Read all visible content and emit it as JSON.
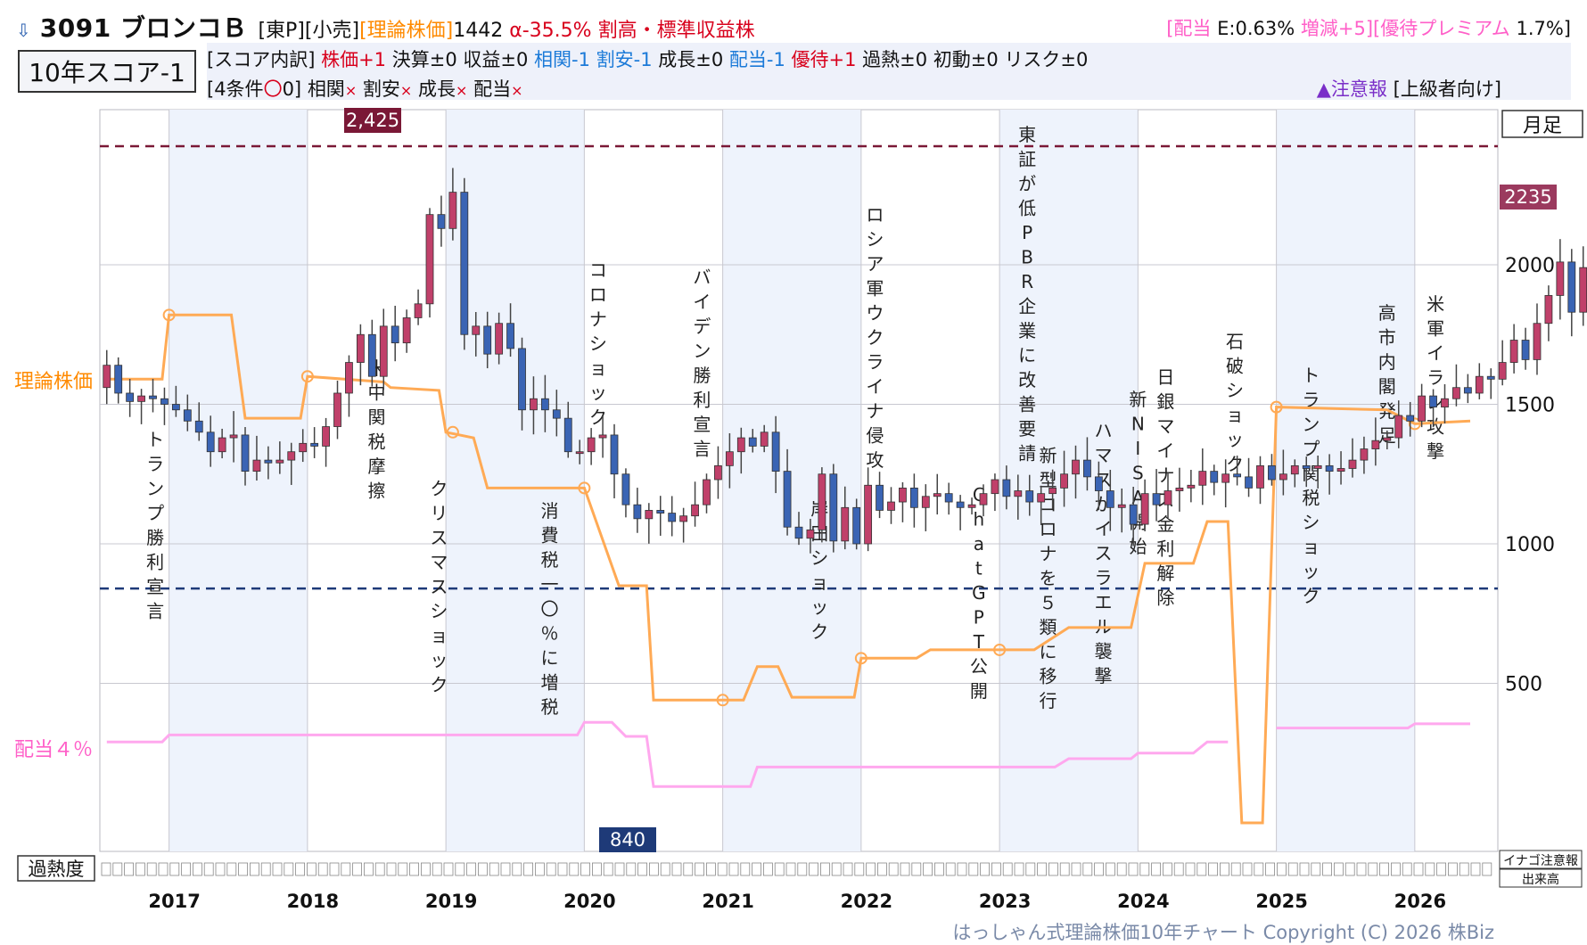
{
  "header": {
    "arrow_icon": "down-arrow-icon",
    "title": "3091 ブロンコＢ",
    "market": "[東P][小売]",
    "theory_label": "[理論株価]",
    "theory_value": "1442",
    "alpha": "α-35.5%",
    "valuation": "割高・標準収益株",
    "right_div_open": "[配当",
    "right_e": "E:0.63%",
    "right_change": "増減+5]",
    "right_yutai": "[優待プレミアム",
    "right_yutai_val": "1.7%]",
    "score_label": "10年スコア-1",
    "breakdown_prefix": "[スコア内訳]",
    "breakdown": [
      {
        "text": "株価+1",
        "color": "#d8001c"
      },
      {
        "text": "決算±0",
        "color": "#111111"
      },
      {
        "text": "収益±0",
        "color": "#111111"
      },
      {
        "text": "相関-1",
        "color": "#1b7ad8"
      },
      {
        "text": "割安-1",
        "color": "#1b7ad8"
      },
      {
        "text": "成長±0",
        "color": "#111111"
      },
      {
        "text": "配当-1",
        "color": "#1b7ad8"
      },
      {
        "text": "優待+1",
        "color": "#d8001c"
      },
      {
        "text": "過熱±0",
        "color": "#111111"
      },
      {
        "text": "初動±0",
        "color": "#111111"
      },
      {
        "text": "リスク±0",
        "color": "#111111"
      }
    ],
    "cond_prefix": "[4条件",
    "cond_mark": "〇",
    "cond_count": "0]",
    "conditions": [
      "相関",
      "割安",
      "成長",
      "配当"
    ],
    "cond_x": "×",
    "warning": "▲注意報",
    "level": "[上級者向け]"
  },
  "chart_data": {
    "type": "candlestick",
    "period": "月足",
    "y_ticks": [
      500,
      1000,
      1500,
      2000
    ],
    "ylim": [
      0,
      2650
    ],
    "high_label": "2,425",
    "high_value": 2425,
    "low_label": "840",
    "low_value": 840,
    "last_label": "2235",
    "last_value": 2235,
    "theory_axis_label": "理論株価",
    "dividend_axis_label": "配当４％",
    "overheat_label": "過熱度",
    "inago_label": "イナゴ注意報",
    "volume_label": "出来高",
    "years": [
      "2017",
      "2018",
      "2019",
      "2020",
      "2021",
      "2022",
      "2023",
      "2024",
      "2025",
      "2026"
    ],
    "events": [
      {
        "text": "トランプ勝利宣言",
        "t": 2016.9
      },
      {
        "text": "米中関税摩擦",
        "t": 2018.5
      },
      {
        "text": "クリスマスショック",
        "t": 2018.95
      },
      {
        "text": "消費税一〇％に増税",
        "t": 2019.75
      },
      {
        "text": "コロナショック",
        "t": 2020.1
      },
      {
        "text": "バイデン勝利宣言",
        "t": 2020.85
      },
      {
        "text": "岸田ショック",
        "t": 2021.7
      },
      {
        "text": "ロシア軍ウクライナ侵攻",
        "t": 2022.1
      },
      {
        "text": "ChatGPT公開",
        "t": 2022.85
      },
      {
        "text": "東証が低PBR企業に改善要請",
        "t": 2023.2
      },
      {
        "text": "新型コロナを５類に移行",
        "t": 2023.35
      },
      {
        "text": "ハマスがイスラエル襲撃",
        "t": 2023.75
      },
      {
        "text": "新NISA開始",
        "t": 2024.0
      },
      {
        "text": "日銀マイナス金利解除",
        "t": 2024.2
      },
      {
        "text": "石破ショック",
        "t": 2024.7
      },
      {
        "text": "トランプ関税ショック",
        "t": 2025.25
      },
      {
        "text": "高市内閣発足",
        "t": 2025.8
      },
      {
        "text": "米軍イラン攻撃",
        "t": 2026.15
      }
    ],
    "monthly_close": [
      1640,
      1540,
      1510,
      1530,
      1520,
      1500,
      1480,
      1440,
      1400,
      1330,
      1380,
      1390,
      1260,
      1300,
      1290,
      1300,
      1330,
      1360,
      1350,
      1420,
      1540,
      1650,
      1750,
      1600,
      1780,
      1720,
      1810,
      1860,
      2180,
      2130,
      2260,
      1750,
      1780,
      1680,
      1790,
      1700,
      1480,
      1520,
      1480,
      1450,
      1330,
      1330,
      1380,
      1390,
      1250,
      1140,
      1090,
      1120,
      1110,
      1080,
      1100,
      1140,
      1230,
      1280,
      1330,
      1380,
      1350,
      1400,
      1260,
      1060,
      1020,
      1050,
      1250,
      1010,
      1130,
      1000,
      1210,
      1120,
      1150,
      1200,
      1130,
      1170,
      1180,
      1150,
      1130,
      1140,
      1180,
      1230,
      1170,
      1190,
      1150,
      1180,
      1200,
      1250,
      1300,
      1240,
      1190,
      1130,
      1140,
      1070,
      1180,
      1140,
      1190,
      1200,
      1210,
      1260,
      1220,
      1250,
      1240,
      1200,
      1280,
      1230,
      1250,
      1280,
      1270,
      1280,
      1260,
      1270,
      1300,
      1340,
      1370,
      1380,
      1460,
      1440,
      1530,
      1490,
      1520,
      1560,
      1540,
      1600,
      1590,
      1650,
      1730,
      1660,
      1790,
      1890,
      2010,
      1830,
      1990,
      1880,
      1850,
      1800,
      1860,
      1960,
      1880,
      1910,
      1950,
      1790,
      1860,
      1800,
      1880,
      1950,
      1900,
      1920,
      1850,
      2010,
      2020,
      1940,
      1950,
      1960,
      1900,
      1950,
      1980,
      1990,
      2050,
      2100,
      2230,
      2150,
      2250,
      2070,
      2120,
      2235
    ]
  }
}
